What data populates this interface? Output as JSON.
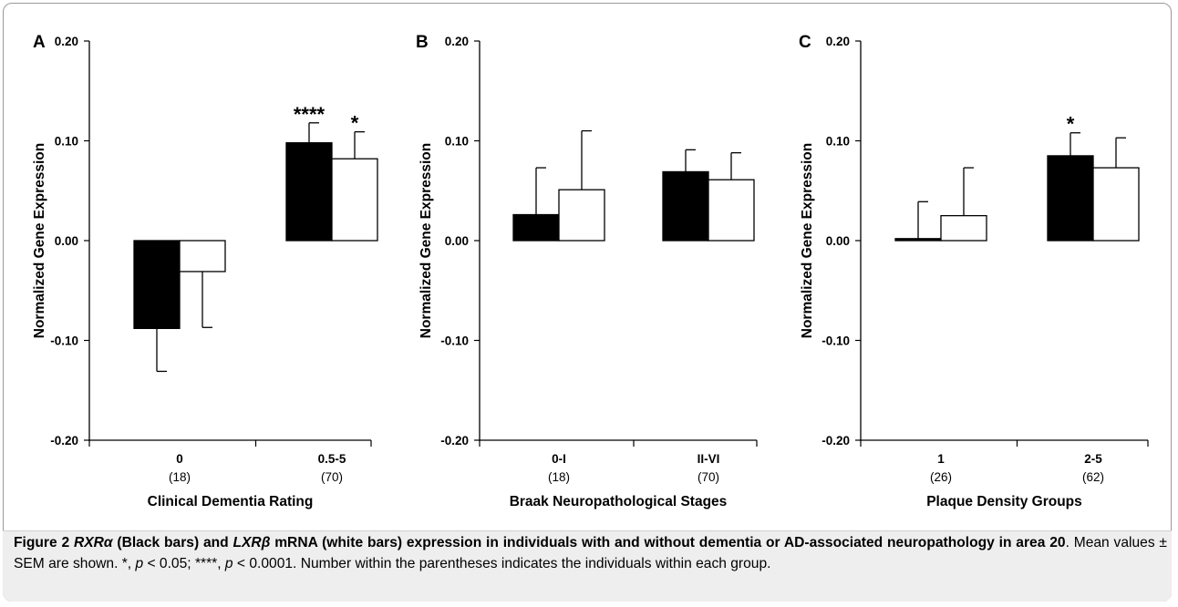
{
  "figure": {
    "caption": {
      "label": "Figure 2",
      "title_gene1": "RXRα",
      "title_part1": " (Black bars) and ",
      "title_gene2": "LXRβ",
      "title_part2": " mRNA (white bars) expression in individuals with and without dementia or AD-associated neuropathology in area 20",
      "body_part1": ". Mean values ± SEM are shown. *, ",
      "p1": "p",
      "body_part2": " < 0.05; ****, ",
      "p2": "p",
      "body_part3": " < 0.0001. Number within the parentheses indicates the individuals within each group."
    }
  },
  "chart_data": [
    {
      "panel": "A",
      "type": "bar",
      "ylabel": "Normalized Gene Expression",
      "xlabel": "Clinical Dementia Rating",
      "ylim": [
        -0.2,
        0.2
      ],
      "yticks": [
        "0.20",
        "0.10",
        "0.00",
        "-0.10",
        "-0.20"
      ],
      "categories": [
        "0",
        "0.5-5"
      ],
      "category_counts": [
        "(18)",
        "(70)"
      ],
      "series": [
        {
          "color": "#000000",
          "values": [
            -0.088,
            0.098
          ],
          "errors": [
            0.043,
            0.02
          ],
          "sig": [
            "",
            "****"
          ]
        },
        {
          "color": "#ffffff",
          "values": [
            -0.031,
            0.082
          ],
          "errors": [
            0.056,
            0.027
          ],
          "sig": [
            "",
            "*"
          ]
        }
      ]
    },
    {
      "panel": "B",
      "type": "bar",
      "ylabel": "Normalized Gene Expression",
      "xlabel": "Braak Neuropathological Stages",
      "ylim": [
        -0.2,
        0.2
      ],
      "yticks": [
        "0.20",
        "0.10",
        "0.00",
        "-0.10",
        "-0.20"
      ],
      "categories": [
        "0-I",
        "II-VI"
      ],
      "category_counts": [
        "(18)",
        "(70)"
      ],
      "series": [
        {
          "color": "#000000",
          "values": [
            0.026,
            0.069
          ],
          "errors": [
            0.047,
            0.022
          ],
          "sig": [
            "",
            ""
          ]
        },
        {
          "color": "#ffffff",
          "values": [
            0.051,
            0.061
          ],
          "errors": [
            0.059,
            0.027
          ],
          "sig": [
            "",
            ""
          ]
        }
      ]
    },
    {
      "panel": "C",
      "type": "bar",
      "ylabel": "Normalized Gene Expression",
      "xlabel": "Plaque Density Groups",
      "ylim": [
        -0.2,
        0.2
      ],
      "yticks": [
        "0.20",
        "0.10",
        "0.00",
        "-0.10",
        "-0.20"
      ],
      "categories": [
        "1",
        "2-5"
      ],
      "category_counts": [
        "(26)",
        "(62)"
      ],
      "series": [
        {
          "color": "#000000",
          "values": [
            0.002,
            0.085
          ],
          "errors": [
            0.037,
            0.023
          ],
          "sig": [
            "",
            "*"
          ]
        },
        {
          "color": "#ffffff",
          "values": [
            0.025,
            0.073
          ],
          "errors": [
            0.048,
            0.03
          ],
          "sig": [
            "",
            ""
          ]
        }
      ]
    }
  ]
}
